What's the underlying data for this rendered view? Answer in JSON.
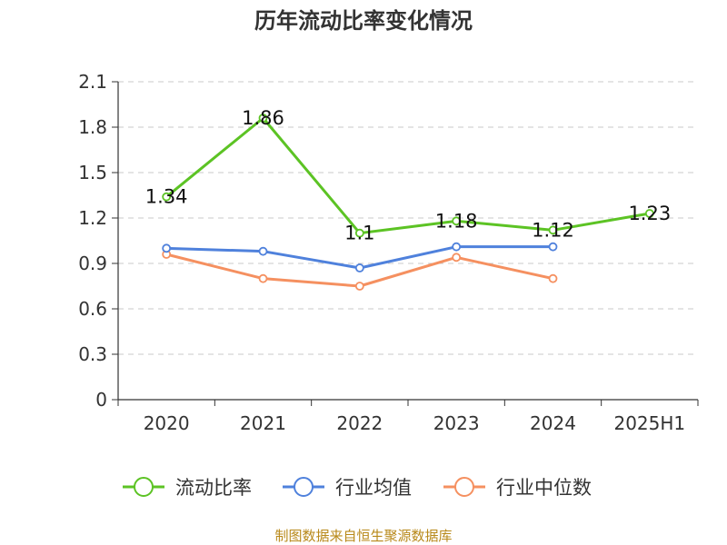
{
  "chart_data": {
    "type": "line",
    "title": "历年流动比率变化情况",
    "categories": [
      "2020",
      "2021",
      "2022",
      "2023",
      "2024",
      "2025H1"
    ],
    "yticks": [
      "0",
      "0.3",
      "0.6",
      "0.9",
      "1.2",
      "1.5",
      "1.8",
      "2.1"
    ],
    "ylim": [
      0,
      2.1
    ],
    "grid": true,
    "legend_position": "bottom",
    "series": [
      {
        "name": "流动比率",
        "color": "#5cc324",
        "values": [
          1.34,
          1.86,
          1.1,
          1.18,
          1.12,
          1.23
        ],
        "labels": [
          "1.34",
          "1.86",
          "1.1",
          "1.18",
          "1.12",
          "1.23"
        ]
      },
      {
        "name": "行业均值",
        "color": "#4f81dc",
        "values": [
          1.0,
          0.98,
          0.87,
          1.01,
          1.01,
          null
        ]
      },
      {
        "name": "行业中位数",
        "color": "#f59060",
        "values": [
          0.96,
          0.8,
          0.75,
          0.94,
          0.8,
          null
        ]
      }
    ]
  },
  "source": "制图数据来自恒生聚源数据库"
}
